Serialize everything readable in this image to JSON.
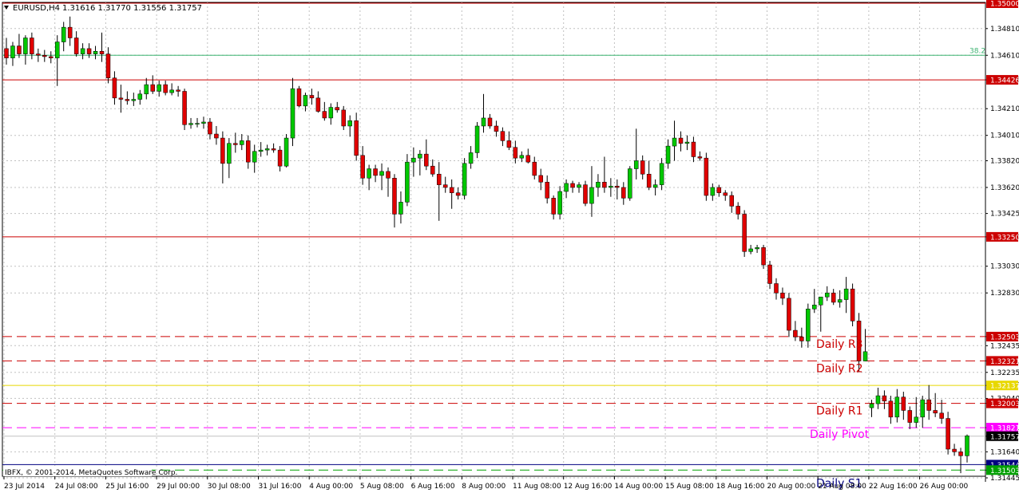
{
  "header": {
    "symbol": "EURUSD,H4",
    "ohlc": "1.31616 1.31770 1.31556 1.31757",
    "menu_icon": "triangle-down-icon"
  },
  "footer": {
    "copyright": "IBFX, © 2001-2014, MetaQuotes Software Corp."
  },
  "colors": {
    "bull": "#00c800",
    "bear": "#e00000",
    "grid": "#c0c0c0",
    "resistance": "#cc0000",
    "pivot": "#ff00ff",
    "yellow_line": "#e8d800",
    "fib": "#3cb371",
    "support": "#00a000",
    "current_price_bg": "#000000",
    "blue_line": "#000080"
  },
  "chart_data": {
    "type": "candlestick",
    "y_axis_ticks": [
      "1.34810",
      "1.34610",
      "1.34426",
      "1.34210",
      "1.34010",
      "1.33820",
      "1.33620",
      "1.33425",
      "1.33250",
      "1.33030",
      "1.32830",
      "1.32503",
      "1.32435",
      "1.32321",
      "1.32235",
      "1.32137",
      "1.32040",
      "1.32003",
      "1.31821",
      "1.31757",
      "1.31640",
      "1.31544",
      "1.31503",
      "1.31445"
    ],
    "x_axis_ticks": [
      "23 Jul 2014",
      "24 Jul 08:00",
      "25 Jul 16:00",
      "29 Jul 00:00",
      "30 Jul 08:00",
      "31 Jul 16:00",
      "4 Aug 00:00",
      "5 Aug 08:00",
      "6 Aug 16:00",
      "8 Aug 00:00",
      "11 Aug 08:00",
      "12 Aug 16:00",
      "14 Aug 00:00",
      "15 Aug 08:00",
      "18 Aug 16:00",
      "20 Aug 00:00",
      "21 Aug 08:00",
      "22 Aug 16:00",
      "26 Aug 00:00"
    ],
    "top_price": "1.35000",
    "price_lines": [
      {
        "price": 1.35,
        "label": "1.35000",
        "style": "solid",
        "color": "#cc0000"
      },
      {
        "price": 1.34426,
        "label": "1.34426",
        "style": "solid",
        "color": "#cc0000"
      },
      {
        "price": 1.3325,
        "label": "1.33250",
        "style": "solid",
        "color": "#cc0000"
      },
      {
        "price": 1.32503,
        "label": "1.32503",
        "style": "dashed",
        "color": "#cc0000"
      },
      {
        "price": 1.32321,
        "label": "1.32321",
        "style": "dashed",
        "color": "#cc0000"
      },
      {
        "price": 1.32137,
        "label": "1.32137",
        "style": "solid",
        "color": "#e8d800"
      },
      {
        "price": 1.32003,
        "label": "1.32003",
        "style": "dashed",
        "color": "#cc0000"
      },
      {
        "price": 1.31821,
        "label": "1.31821",
        "style": "dashed",
        "color": "#ff00ff"
      },
      {
        "price": 1.31544,
        "label": "1.31544",
        "style": "solid",
        "color": "#000080"
      },
      {
        "price": 1.31503,
        "label": "1.31503",
        "style": "dashed",
        "color": "#00a000"
      }
    ],
    "fib_line": {
      "price": 1.3461,
      "label": "38.2"
    },
    "current_price": {
      "price": 1.31757,
      "label": "1.31757"
    },
    "annotations": [
      {
        "text": "Daily R3",
        "price": 1.32503,
        "color": "#cc0000"
      },
      {
        "text": "Daily R2",
        "price": 1.32321,
        "color": "#cc0000"
      },
      {
        "text": "Daily R1",
        "price": 1.32003,
        "color": "#cc0000"
      },
      {
        "text": "Daily Pivot",
        "price": 1.31821,
        "color": "#ff00ff"
      },
      {
        "text": "Daily S1",
        "price": 1.31503,
        "color": "#000080"
      }
    ],
    "candles": [
      [
        1.3466,
        1.3474,
        1.3454,
        1.3459
      ],
      [
        1.3459,
        1.3471,
        1.3453,
        1.3468
      ],
      [
        1.3468,
        1.3477,
        1.3459,
        1.3462
      ],
      [
        1.3462,
        1.3476,
        1.3454,
        1.3474
      ],
      [
        1.3474,
        1.3478,
        1.3458,
        1.3462
      ],
      [
        1.3462,
        1.3466,
        1.3456,
        1.3461
      ],
      [
        1.3461,
        1.3465,
        1.3456,
        1.346
      ],
      [
        1.346,
        1.3464,
        1.3455,
        1.3459
      ],
      [
        1.3459,
        1.3476,
        1.3438,
        1.3471
      ],
      [
        1.3471,
        1.3486,
        1.3464,
        1.3482
      ],
      [
        1.3482,
        1.349,
        1.3468,
        1.3474
      ],
      [
        1.3474,
        1.3479,
        1.346,
        1.3462
      ],
      [
        1.3462,
        1.347,
        1.3458,
        1.3466
      ],
      [
        1.3466,
        1.347,
        1.3459,
        1.3462
      ],
      [
        1.3462,
        1.3468,
        1.3458,
        1.3464
      ],
      [
        1.3464,
        1.3478,
        1.3456,
        1.3462
      ],
      [
        1.3462,
        1.3467,
        1.344,
        1.3444
      ],
      [
        1.3444,
        1.3449,
        1.3424,
        1.3429
      ],
      [
        1.3429,
        1.3439,
        1.3418,
        1.3428
      ],
      [
        1.3428,
        1.3434,
        1.3424,
        1.3427
      ],
      [
        1.3427,
        1.3433,
        1.3423,
        1.3428
      ],
      [
        1.3428,
        1.3435,
        1.3424,
        1.3432
      ],
      [
        1.3432,
        1.3444,
        1.3428,
        1.3439
      ],
      [
        1.3439,
        1.3446,
        1.3432,
        1.3434
      ],
      [
        1.3434,
        1.3442,
        1.343,
        1.3439
      ],
      [
        1.3439,
        1.3442,
        1.3431,
        1.3433
      ],
      [
        1.3433,
        1.344,
        1.3431,
        1.3435
      ],
      [
        1.3435,
        1.3438,
        1.343,
        1.3434
      ],
      [
        1.3434,
        1.3436,
        1.3405,
        1.3409
      ],
      [
        1.3409,
        1.3414,
        1.3406,
        1.341
      ],
      [
        1.341,
        1.3414,
        1.3407,
        1.341
      ],
      [
        1.341,
        1.3415,
        1.3406,
        1.3411
      ],
      [
        1.3411,
        1.3414,
        1.3398,
        1.3402
      ],
      [
        1.3402,
        1.3408,
        1.3394,
        1.3399
      ],
      [
        1.3399,
        1.3404,
        1.3365,
        1.338
      ],
      [
        1.338,
        1.3399,
        1.3369,
        1.3395
      ],
      [
        1.3395,
        1.3403,
        1.3388,
        1.3394
      ],
      [
        1.3394,
        1.3402,
        1.339,
        1.3397
      ],
      [
        1.3397,
        1.3401,
        1.3376,
        1.3381
      ],
      [
        1.3381,
        1.3394,
        1.3373,
        1.3389
      ],
      [
        1.3389,
        1.3396,
        1.3385,
        1.339
      ],
      [
        1.339,
        1.3394,
        1.3386,
        1.3391
      ],
      [
        1.3391,
        1.3395,
        1.3388,
        1.339
      ],
      [
        1.339,
        1.3393,
        1.3374,
        1.3378
      ],
      [
        1.3378,
        1.3402,
        1.3377,
        1.3399
      ],
      [
        1.3399,
        1.3444,
        1.3393,
        1.3436
      ],
      [
        1.3436,
        1.3438,
        1.3422,
        1.3423
      ],
      [
        1.3423,
        1.3433,
        1.3419,
        1.3431
      ],
      [
        1.3431,
        1.3436,
        1.3424,
        1.3429
      ],
      [
        1.3429,
        1.3434,
        1.3418,
        1.3419
      ],
      [
        1.3419,
        1.3426,
        1.3412,
        1.3414
      ],
      [
        1.3414,
        1.3425,
        1.3409,
        1.3422
      ],
      [
        1.3422,
        1.3426,
        1.3418,
        1.342
      ],
      [
        1.342,
        1.3423,
        1.3405,
        1.3408
      ],
      [
        1.3408,
        1.3416,
        1.34,
        1.3412
      ],
      [
        1.3412,
        1.3418,
        1.3382,
        1.3386
      ],
      [
        1.3386,
        1.3393,
        1.3364,
        1.3369
      ],
      [
        1.3369,
        1.3379,
        1.336,
        1.3376
      ],
      [
        1.3376,
        1.3379,
        1.3366,
        1.3371
      ],
      [
        1.3371,
        1.338,
        1.336,
        1.3374
      ],
      [
        1.3374,
        1.3377,
        1.3355,
        1.3369
      ],
      [
        1.3369,
        1.3372,
        1.3332,
        1.3342
      ],
      [
        1.3342,
        1.3359,
        1.3335,
        1.3351
      ],
      [
        1.3351,
        1.3387,
        1.3348,
        1.3381
      ],
      [
        1.3381,
        1.3392,
        1.337,
        1.3384
      ],
      [
        1.3384,
        1.339,
        1.3371,
        1.3387
      ],
      [
        1.3387,
        1.3398,
        1.3375,
        1.3378
      ],
      [
        1.3378,
        1.3383,
        1.337,
        1.3372
      ],
      [
        1.3372,
        1.3381,
        1.3337,
        1.3364
      ],
      [
        1.3364,
        1.337,
        1.3358,
        1.3362
      ],
      [
        1.3362,
        1.3368,
        1.3346,
        1.3358
      ],
      [
        1.3358,
        1.3362,
        1.3353,
        1.3356
      ],
      [
        1.3356,
        1.3384,
        1.3353,
        1.338
      ],
      [
        1.338,
        1.3393,
        1.3376,
        1.3388
      ],
      [
        1.3388,
        1.3411,
        1.3384,
        1.3408
      ],
      [
        1.3408,
        1.3432,
        1.3403,
        1.3414
      ],
      [
        1.3414,
        1.3417,
        1.3406,
        1.3408
      ],
      [
        1.3408,
        1.3412,
        1.34,
        1.3404
      ],
      [
        1.3404,
        1.3407,
        1.3393,
        1.3397
      ],
      [
        1.3397,
        1.3404,
        1.339,
        1.3392
      ],
      [
        1.3392,
        1.3397,
        1.338,
        1.3384
      ],
      [
        1.3384,
        1.3389,
        1.3381,
        1.3386
      ],
      [
        1.3386,
        1.3391,
        1.338,
        1.3381
      ],
      [
        1.3381,
        1.3385,
        1.3368,
        1.3371
      ],
      [
        1.3371,
        1.3376,
        1.336,
        1.3366
      ],
      [
        1.3366,
        1.3371,
        1.335,
        1.3354
      ],
      [
        1.3354,
        1.3356,
        1.3338,
        1.3342
      ],
      [
        1.3342,
        1.3363,
        1.3338,
        1.3359
      ],
      [
        1.3359,
        1.3368,
        1.3354,
        1.3365
      ],
      [
        1.3365,
        1.3367,
        1.3358,
        1.3362
      ],
      [
        1.3362,
        1.3366,
        1.3358,
        1.3364
      ],
      [
        1.3364,
        1.3367,
        1.3348,
        1.335
      ],
      [
        1.335,
        1.3378,
        1.334,
        1.3362
      ],
      [
        1.3362,
        1.3372,
        1.3355,
        1.3366
      ],
      [
        1.3366,
        1.3385,
        1.3358,
        1.3362
      ],
      [
        1.3362,
        1.3369,
        1.3355,
        1.3363
      ],
      [
        1.3363,
        1.3368,
        1.3353,
        1.3362
      ],
      [
        1.3362,
        1.3366,
        1.3349,
        1.3354
      ],
      [
        1.3354,
        1.3378,
        1.3352,
        1.3376
      ],
      [
        1.3376,
        1.3406,
        1.3368,
        1.3382
      ],
      [
        1.3382,
        1.3386,
        1.3368,
        1.3372
      ],
      [
        1.3372,
        1.3382,
        1.336,
        1.3362
      ],
      [
        1.3362,
        1.3368,
        1.3356,
        1.3364
      ],
      [
        1.3364,
        1.3384,
        1.336,
        1.338
      ],
      [
        1.338,
        1.3398,
        1.3376,
        1.3393
      ],
      [
        1.3393,
        1.3412,
        1.3382,
        1.3399
      ],
      [
        1.3399,
        1.3404,
        1.3389,
        1.3395
      ],
      [
        1.3395,
        1.3401,
        1.339,
        1.3396
      ],
      [
        1.3396,
        1.34,
        1.3381,
        1.3385
      ],
      [
        1.3385,
        1.3389,
        1.3382,
        1.3384
      ],
      [
        1.3384,
        1.3388,
        1.3352,
        1.3356
      ],
      [
        1.3356,
        1.3365,
        1.3352,
        1.3362
      ],
      [
        1.3362,
        1.3364,
        1.3355,
        1.3358
      ],
      [
        1.3358,
        1.336,
        1.3352,
        1.3356
      ],
      [
        1.3356,
        1.3359,
        1.3343,
        1.3348
      ],
      [
        1.3348,
        1.3351,
        1.3338,
        1.3342
      ],
      [
        1.3342,
        1.3345,
        1.331,
        1.3314
      ],
      [
        1.3314,
        1.3319,
        1.3312,
        1.3316
      ],
      [
        1.3316,
        1.3319,
        1.3313,
        1.3317
      ],
      [
        1.3317,
        1.3319,
        1.3301,
        1.3304
      ],
      [
        1.3304,
        1.3307,
        1.3286,
        1.329
      ],
      [
        1.329,
        1.3294,
        1.3278,
        1.3283
      ],
      [
        1.3283,
        1.3287,
        1.3274,
        1.3279
      ],
      [
        1.3279,
        1.3283,
        1.325,
        1.3255
      ],
      [
        1.3255,
        1.3262,
        1.3247,
        1.325
      ],
      [
        1.325,
        1.3257,
        1.3242,
        1.3247
      ],
      [
        1.3247,
        1.3275,
        1.3242,
        1.3271
      ],
      [
        1.3271,
        1.3286,
        1.3268,
        1.3274
      ],
      [
        1.3274,
        1.328,
        1.3254,
        1.328
      ],
      [
        1.328,
        1.3288,
        1.3277,
        1.3283
      ],
      [
        1.3283,
        1.3286,
        1.3274,
        1.3276
      ],
      [
        1.3276,
        1.3285,
        1.3272,
        1.3278
      ],
      [
        1.3278,
        1.3295,
        1.3268,
        1.3286
      ],
      [
        1.3286,
        1.329,
        1.3258,
        1.3262
      ],
      [
        1.3262,
        1.3268,
        1.3224,
        1.3232
      ],
      [
        1.3232,
        1.3256,
        1.3232,
        1.3239
      ],
      [
        1.3197,
        1.3203,
        1.319,
        1.32
      ],
      [
        1.32,
        1.3212,
        1.3196,
        1.3206
      ],
      [
        1.3206,
        1.321,
        1.3196,
        1.3202
      ],
      [
        1.3202,
        1.3206,
        1.3185,
        1.319
      ],
      [
        1.319,
        1.3211,
        1.3186,
        1.3205
      ],
      [
        1.3205,
        1.3209,
        1.3188,
        1.3195
      ],
      [
        1.3195,
        1.3198,
        1.3181,
        1.3186
      ],
      [
        1.3186,
        1.3205,
        1.3182,
        1.319
      ],
      [
        1.319,
        1.3206,
        1.3182,
        1.3203
      ],
      [
        1.3203,
        1.3214,
        1.3188,
        1.3195
      ],
      [
        1.3195,
        1.3208,
        1.319,
        1.3193
      ],
      [
        1.3193,
        1.3203,
        1.3185,
        1.3189
      ],
      [
        1.3189,
        1.3194,
        1.3162,
        1.3166
      ],
      [
        1.3166,
        1.317,
        1.3161,
        1.3164
      ],
      [
        1.3164,
        1.3167,
        1.3148,
        1.3161
      ],
      [
        1.3161,
        1.3177,
        1.3156,
        1.3176
      ]
    ]
  }
}
